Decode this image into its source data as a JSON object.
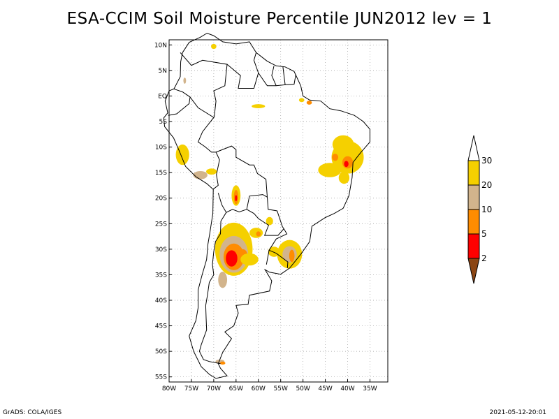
{
  "title": "ESA-CCIM Soil Moisture Percentile JUN2012 lev = 1",
  "footer": {
    "left": "GrADS: COLA/IGES",
    "right": "2021-05-12-20:01"
  },
  "map": {
    "lon_range": [
      -80,
      -31
    ],
    "lat_range": [
      -56,
      11
    ],
    "lat_ticks": [
      {
        "value": 10,
        "label": "10N"
      },
      {
        "value": 5,
        "label": "5N"
      },
      {
        "value": 0,
        "label": "EQ"
      },
      {
        "value": -5,
        "label": "5S"
      },
      {
        "value": -10,
        "label": "10S"
      },
      {
        "value": -15,
        "label": "15S"
      },
      {
        "value": -20,
        "label": "20S"
      },
      {
        "value": -25,
        "label": "25S"
      },
      {
        "value": -30,
        "label": "30S"
      },
      {
        "value": -35,
        "label": "35S"
      },
      {
        "value": -40,
        "label": "40S"
      },
      {
        "value": -45,
        "label": "45S"
      },
      {
        "value": -50,
        "label": "50S"
      },
      {
        "value": -55,
        "label": "55S"
      }
    ],
    "lon_ticks": [
      {
        "value": -80,
        "label": "80W"
      },
      {
        "value": -75,
        "label": "75W"
      },
      {
        "value": -70,
        "label": "70W"
      },
      {
        "value": -65,
        "label": "65W"
      },
      {
        "value": -60,
        "label": "60W"
      },
      {
        "value": -55,
        "label": "55W"
      },
      {
        "value": -50,
        "label": "50W"
      },
      {
        "value": -45,
        "label": "45W"
      },
      {
        "value": -40,
        "label": "40W"
      },
      {
        "value": -35,
        "label": "35W"
      }
    ],
    "grid": true,
    "grid_style": "dotted"
  },
  "colorbar": {
    "placement": "right",
    "levels": [
      "30",
      "20",
      "10",
      "5",
      "2"
    ],
    "colors": {
      "above_30": "#ffffff",
      "20_30": "#f5d000",
      "10_20": "#d2b48c",
      "5_10": "#ff8c00",
      "2_5": "#ff0000",
      "below_2": "#8b4513"
    }
  }
}
